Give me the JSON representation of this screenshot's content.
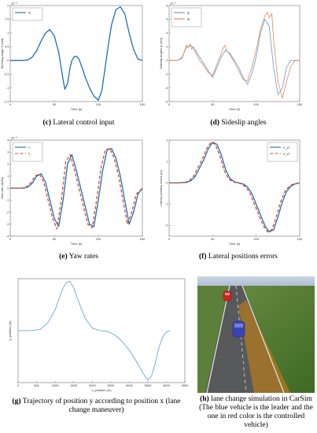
{
  "chart_data": [
    {
      "id": "c",
      "type": "line",
      "caption_label": "(c)",
      "caption_text": "Lateral control input",
      "ylabel": "Steering angle δ (rad)",
      "xlabel": "Time (s)",
      "exponent": "10⁻³",
      "xlim": [
        0,
        150
      ],
      "ylim": [
        -1.5,
        2
      ],
      "xticks": [
        0,
        50,
        100,
        150
      ],
      "yticks": [
        -1.5,
        -1,
        -0.5,
        0,
        0.5,
        1,
        1.5,
        2
      ],
      "legend": "top-left",
      "series": [
        {
          "name": "δ₁",
          "color": "#1f6fb5",
          "dash": "",
          "x": [
            0,
            15,
            20,
            25,
            30,
            35,
            40,
            45,
            50,
            55,
            60,
            62,
            65,
            68,
            70,
            73,
            75,
            78,
            82,
            85,
            90,
            95,
            100,
            104,
            108,
            112,
            115,
            120,
            125,
            130,
            135,
            140,
            145,
            150
          ],
          "y": [
            0,
            0,
            0.02,
            0.12,
            0.35,
            0.7,
            1,
            1.12,
            0.9,
            0.3,
            -0.7,
            -1.05,
            -0.85,
            -0.25,
            0,
            0.15,
            0.15,
            0.05,
            -0.3,
            -0.6,
            -1,
            -1.3,
            -1.45,
            -1.1,
            -0.2,
            0.7,
            1.3,
            1.85,
            1.95,
            1.7,
            1,
            0.4,
            0.05,
            0
          ]
        }
      ]
    },
    {
      "id": "d",
      "type": "line",
      "caption_label": "(d)",
      "caption_text": "Sideslip angles",
      "ylabel": "Sideslip angles β (rad)",
      "xlabel": "Time (s)",
      "exponent": "10⁻⁴",
      "xlim": [
        0,
        150
      ],
      "ylim": [
        -6,
        8
      ],
      "xticks": [
        0,
        50,
        100,
        150
      ],
      "yticks": [
        -6,
        -4,
        -2,
        0,
        2,
        4,
        6,
        8
      ],
      "legend": "top-left",
      "series": [
        {
          "name": "β₁",
          "color": "#5b9bd5",
          "dash": "",
          "x": [
            0,
            10,
            15,
            20,
            25,
            30,
            35,
            40,
            45,
            50,
            55,
            60,
            65,
            70,
            75,
            80,
            85,
            90,
            95,
            100,
            105,
            110,
            115,
            120,
            125,
            130,
            135,
            140,
            145,
            150
          ],
          "y": [
            0,
            0,
            0.5,
            2,
            2.2,
            1.5,
            0.5,
            -0.5,
            -1.5,
            -2.5,
            -1,
            0.5,
            1.5,
            1,
            0,
            -1,
            -2.5,
            -3.5,
            -2,
            0.5,
            4,
            6,
            5,
            -1,
            -5,
            -4,
            -1,
            0,
            0,
            0
          ]
        },
        {
          "name": "β̂₁",
          "color": "#e8884a",
          "dash": "",
          "x": [
            0,
            10,
            15,
            18,
            20,
            22,
            24,
            26,
            28,
            30,
            33,
            35,
            40,
            45,
            50,
            55,
            60,
            62,
            64,
            66,
            70,
            75,
            80,
            85,
            90,
            95,
            100,
            105,
            110,
            113,
            115,
            118,
            120,
            125,
            130,
            135,
            140,
            145,
            150
          ],
          "y": [
            0,
            0,
            0.3,
            1.5,
            2.2,
            1.8,
            2.4,
            1.6,
            2,
            1.2,
            0.5,
            0,
            -0.8,
            -1.8,
            -2.2,
            -0.5,
            1,
            1.8,
            2.2,
            1.5,
            0.8,
            -0.3,
            -1.5,
            -2.8,
            -3,
            -1,
            1.5,
            4.5,
            6.5,
            7,
            6.2,
            6.8,
            3,
            -3,
            -5.5,
            -3,
            -0.8,
            0,
            0
          ]
        }
      ]
    },
    {
      "id": "e",
      "type": "line",
      "caption_label": "(e)",
      "caption_text": "Yaw rates",
      "ylabel": "Yaw rate (rad/s)",
      "xlabel": "Time (s)",
      "exponent": "10⁻³",
      "xlim": [
        0,
        150
      ],
      "ylim": [
        -4,
        4
      ],
      "xticks": [
        0,
        50,
        100,
        150
      ],
      "yticks": [
        -4,
        -3,
        -2,
        -1,
        0,
        1,
        2,
        3,
        4
      ],
      "legend": "top-left",
      "series": [
        {
          "name": "r₁",
          "color": "#1f6fb5",
          "dash": "",
          "x": [
            0,
            15,
            20,
            25,
            30,
            35,
            40,
            45,
            50,
            55,
            60,
            65,
            70,
            75,
            80,
            85,
            90,
            95,
            100,
            105,
            110,
            115,
            120,
            125,
            130,
            135,
            140,
            145,
            150
          ],
          "y": [
            0,
            0,
            0.1,
            0.4,
            1,
            1.2,
            0.5,
            -1,
            -2.5,
            -3.2,
            -1,
            2,
            2.8,
            1.5,
            0,
            -1.5,
            -3,
            -3.2,
            -1,
            1.5,
            3.2,
            3.3,
            2.5,
            1,
            -1,
            -3,
            -2,
            -0.5,
            0
          ]
        },
        {
          "name": "r̂₁",
          "color": "#e34a1d",
          "dash": "4,2.5",
          "x": [
            0,
            13,
            18,
            23,
            28,
            33,
            38,
            43,
            48,
            53,
            58,
            63,
            68,
            73,
            78,
            83,
            88,
            93,
            98,
            103,
            108,
            113,
            118,
            123,
            128,
            133,
            138,
            143,
            150
          ],
          "y": [
            0,
            0,
            0.1,
            0.4,
            1,
            1.2,
            0.5,
            -1,
            -2.5,
            -3.4,
            -1,
            2.2,
            2.8,
            1.5,
            0,
            -1.5,
            -3,
            -3.3,
            -1,
            1.7,
            3.2,
            3.3,
            2.5,
            1,
            -1,
            -3,
            -2,
            -0.5,
            0
          ]
        }
      ]
    },
    {
      "id": "f",
      "type": "line",
      "caption_label": "(f)",
      "caption_text": "Lateral positions errors",
      "ylabel": "Lateral position errors (m)",
      "xlabel": "Time (s)",
      "exponent": "",
      "xlim": [
        0,
        150
      ],
      "ylim": [
        -2.5,
        2
      ],
      "xticks": [
        0,
        50,
        100,
        150
      ],
      "yticks": [
        -2,
        -1,
        0,
        1,
        2
      ],
      "legend": "top-right",
      "series": [
        {
          "name": "e_y1",
          "color": "#1f6fb5",
          "dash": "",
          "x": [
            0,
            10,
            20,
            25,
            30,
            35,
            40,
            45,
            50,
            55,
            60,
            65,
            70,
            75,
            80,
            85,
            90,
            95,
            100,
            105,
            110,
            115,
            120,
            125,
            130,
            135,
            140,
            145,
            150
          ],
          "y": [
            0,
            0,
            0.02,
            0.1,
            0.3,
            0.7,
            1.1,
            1.6,
            1.9,
            1.8,
            1.3,
            0.6,
            0.2,
            0.05,
            0,
            -0.05,
            -0.2,
            -0.5,
            -1,
            -1.5,
            -2,
            -2.3,
            -2.2,
            -1.6,
            -0.9,
            -0.4,
            -0.15,
            -0.05,
            0
          ]
        },
        {
          "name": "ê_y1",
          "color": "#e34a1d",
          "dash": "4,2.5",
          "x": [
            0,
            8,
            18,
            23,
            28,
            33,
            38,
            43,
            48,
            53,
            58,
            63,
            68,
            73,
            78,
            83,
            88,
            93,
            98,
            103,
            108,
            113,
            118,
            123,
            128,
            133,
            138,
            143,
            150
          ],
          "y": [
            0,
            0,
            0.02,
            0.1,
            0.3,
            0.7,
            1.1,
            1.6,
            1.9,
            1.8,
            1.3,
            0.6,
            0.2,
            0.05,
            0,
            -0.05,
            -0.2,
            -0.5,
            -1,
            -1.5,
            -2,
            -2.3,
            -2.2,
            -1.6,
            -0.9,
            -0.4,
            -0.15,
            -0.05,
            0
          ]
        }
      ]
    },
    {
      "id": "g",
      "type": "line",
      "caption_label": "(g)",
      "caption_text": "Trajectory of position y according to position x (lane change maneuver)",
      "ylabel": "y_position (m)",
      "xlabel": "x_position (m)",
      "exponent": "",
      "xlim": [
        0,
        4500
      ],
      "ylim": [
        -4,
        4
      ],
      "xticks": [
        0,
        500,
        1000,
        1500,
        2000,
        2500,
        3000,
        3500,
        4000,
        4500
      ],
      "yticks": [],
      "legend": "none",
      "series": [
        {
          "name": "",
          "color": "#5b9bd5",
          "dash": "",
          "x": [
            0,
            300,
            600,
            800,
            1000,
            1200,
            1300,
            1400,
            1500,
            1600,
            1800,
            2000,
            2200,
            2400,
            2600,
            2800,
            3000,
            3200,
            3400,
            3500,
            3600,
            3700,
            3800,
            3900,
            4000,
            4100
          ],
          "y": [
            0,
            0,
            0.1,
            0.6,
            1.6,
            3.2,
            3.7,
            3.8,
            3.3,
            2.5,
            1,
            0.2,
            0,
            -0.05,
            -0.3,
            -0.8,
            -1.5,
            -2.4,
            -3.4,
            -3.8,
            -3.5,
            -2.5,
            -1.3,
            -0.5,
            -0.1,
            0
          ]
        }
      ]
    }
  ],
  "photo": {
    "caption_label": "(h)",
    "caption_text": "lane change simulation in CarSim (The blue vehicle is the leader and the one in red color is the controlled vehicle)",
    "colors": {
      "road": "#56585a",
      "grass": "#4f7a2e",
      "path": "#b07a1e",
      "lead": "#3a44b8",
      "controlled": "#d32020"
    }
  }
}
